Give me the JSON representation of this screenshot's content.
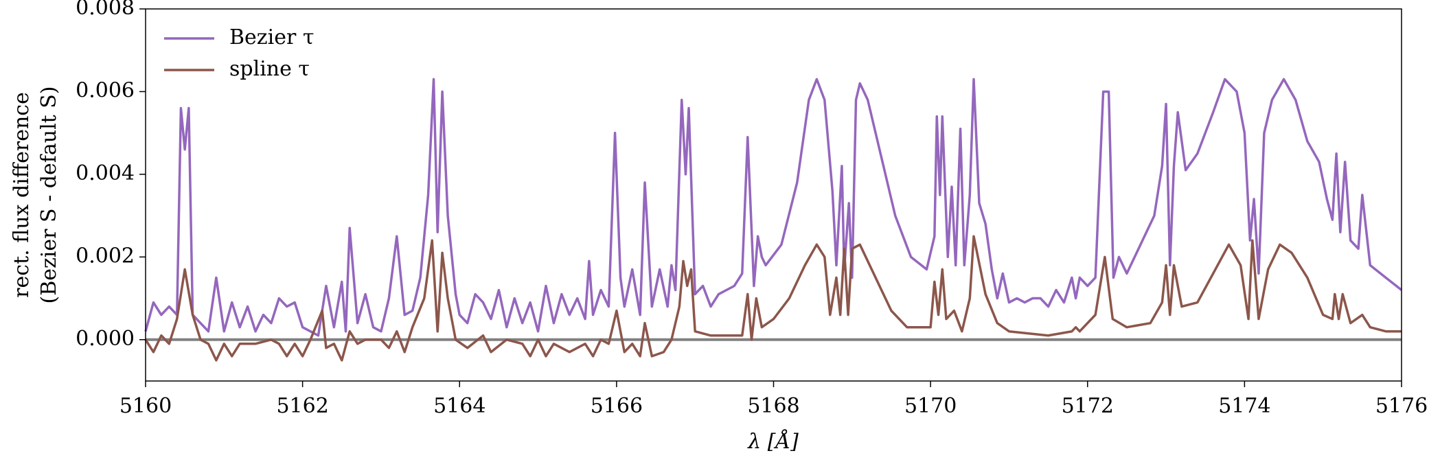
{
  "chart_data": {
    "type": "line",
    "xlabel": "λ [Å]",
    "ylabel": [
      "rect. flux difference",
      "(Bezier S - default S)"
    ],
    "xlim": [
      5160,
      5176
    ],
    "ylim": [
      -0.001,
      0.008
    ],
    "xticks": [
      5160,
      5162,
      5164,
      5166,
      5168,
      5170,
      5172,
      5174,
      5176
    ],
    "yticks": [
      {
        "value": 0,
        "label": "0.000"
      },
      {
        "value": 0.002,
        "label": "0.002"
      },
      {
        "value": 0.004,
        "label": "0.004"
      },
      {
        "value": 0.006,
        "label": "0.006"
      },
      {
        "value": 0.008,
        "label": "0.008"
      }
    ],
    "hline": {
      "value": 0,
      "color": "#808080"
    },
    "legend": "upper left",
    "series": [
      {
        "name": "Bezier τ",
        "color": "#9467bd",
        "x": [
          5160.0,
          5160.1,
          5160.2,
          5160.3,
          5160.4,
          5160.45,
          5160.5,
          5160.55,
          5160.6,
          5160.7,
          5160.8,
          5160.9,
          5161.0,
          5161.1,
          5161.2,
          5161.3,
          5161.4,
          5161.5,
          5161.6,
          5161.7,
          5161.8,
          5161.9,
          5162.0,
          5162.1,
          5162.2,
          5162.3,
          5162.4,
          5162.5,
          5162.55,
          5162.6,
          5162.7,
          5162.8,
          5162.9,
          5163.0,
          5163.1,
          5163.2,
          5163.3,
          5163.4,
          5163.5,
          5163.6,
          5163.67,
          5163.72,
          5163.78,
          5163.85,
          5163.95,
          5164.0,
          5164.1,
          5164.2,
          5164.3,
          5164.4,
          5164.5,
          5164.6,
          5164.7,
          5164.8,
          5164.9,
          5165.0,
          5165.1,
          5165.2,
          5165.3,
          5165.4,
          5165.5,
          5165.6,
          5165.65,
          5165.7,
          5165.8,
          5165.9,
          5165.98,
          5166.05,
          5166.1,
          5166.2,
          5166.3,
          5166.36,
          5166.45,
          5166.55,
          5166.65,
          5166.7,
          5166.75,
          5166.83,
          5166.88,
          5166.92,
          5167.0,
          5167.1,
          5167.2,
          5167.3,
          5167.4,
          5167.5,
          5167.6,
          5167.67,
          5167.75,
          5167.8,
          5167.85,
          5167.9,
          5168.1,
          5168.3,
          5168.45,
          5168.55,
          5168.65,
          5168.75,
          5168.8,
          5168.87,
          5168.9,
          5168.96,
          5169.0,
          5169.05,
          5169.1,
          5169.2,
          5169.4,
          5169.55,
          5169.65,
          5169.75,
          5169.95,
          5170.05,
          5170.08,
          5170.12,
          5170.15,
          5170.22,
          5170.27,
          5170.32,
          5170.38,
          5170.43,
          5170.5,
          5170.55,
          5170.62,
          5170.7,
          5170.78,
          5170.85,
          5170.92,
          5171.0,
          5171.1,
          5171.2,
          5171.3,
          5171.4,
          5171.5,
          5171.6,
          5171.7,
          5171.8,
          5171.85,
          5171.9,
          5172.0,
          5172.1,
          5172.2,
          5172.27,
          5172.33,
          5172.4,
          5172.5,
          5172.6,
          5172.7,
          5172.85,
          5172.95,
          5173.0,
          5173.05,
          5173.1,
          5173.15,
          5173.25,
          5173.4,
          5173.6,
          5173.75,
          5173.9,
          5174.0,
          5174.07,
          5174.12,
          5174.18,
          5174.25,
          5174.35,
          5174.5,
          5174.65,
          5174.8,
          5174.95,
          5175.05,
          5175.12,
          5175.17,
          5175.22,
          5175.28,
          5175.35,
          5175.45,
          5175.5,
          5175.6,
          5175.8,
          5176.0
        ],
        "values": [
          0.0002,
          0.0009,
          0.0006,
          0.0008,
          0.0006,
          0.0056,
          0.0046,
          0.0056,
          0.0006,
          0.0004,
          0.0002,
          0.0015,
          0.0002,
          0.0009,
          0.0003,
          0.0008,
          0.0002,
          0.0006,
          0.0004,
          0.001,
          0.0008,
          0.0009,
          0.0003,
          0.0002,
          0.0001,
          0.0013,
          0.0003,
          0.0014,
          0.0002,
          0.0027,
          0.0004,
          0.0011,
          0.0003,
          0.0002,
          0.001,
          0.0025,
          0.0006,
          0.0007,
          0.0015,
          0.0035,
          0.0063,
          0.0026,
          0.006,
          0.003,
          0.0011,
          0.0006,
          0.0004,
          0.0011,
          0.0009,
          0.0005,
          0.0012,
          0.0003,
          0.001,
          0.0004,
          0.0009,
          0.0002,
          0.0013,
          0.0004,
          0.0011,
          0.0006,
          0.001,
          0.0005,
          0.0019,
          0.0006,
          0.0012,
          0.0008,
          0.005,
          0.0015,
          0.0008,
          0.0017,
          0.0006,
          0.0038,
          0.0008,
          0.0017,
          0.0008,
          0.0018,
          0.0012,
          0.0058,
          0.004,
          0.0056,
          0.0011,
          0.0013,
          0.0008,
          0.0011,
          0.0012,
          0.0013,
          0.0016,
          0.0049,
          0.0013,
          0.0025,
          0.002,
          0.0018,
          0.0023,
          0.0038,
          0.0058,
          0.0063,
          0.0058,
          0.0036,
          0.0018,
          0.0042,
          0.0017,
          0.0033,
          0.0015,
          0.0058,
          0.0062,
          0.0058,
          0.0042,
          0.003,
          0.0025,
          0.002,
          0.0017,
          0.0025,
          0.0054,
          0.0035,
          0.0054,
          0.002,
          0.0037,
          0.0018,
          0.0051,
          0.0018,
          0.0035,
          0.0063,
          0.0033,
          0.0028,
          0.0017,
          0.001,
          0.0016,
          0.0009,
          0.001,
          0.0009,
          0.001,
          0.001,
          0.0008,
          0.0012,
          0.0009,
          0.0015,
          0.001,
          0.0015,
          0.0013,
          0.0015,
          0.006,
          0.006,
          0.0015,
          0.002,
          0.0016,
          0.002,
          0.0024,
          0.003,
          0.0042,
          0.0057,
          0.0018,
          0.0042,
          0.0055,
          0.0041,
          0.0045,
          0.0055,
          0.0063,
          0.006,
          0.005,
          0.0024,
          0.0034,
          0.0016,
          0.005,
          0.0058,
          0.0063,
          0.0058,
          0.0048,
          0.0043,
          0.0034,
          0.0029,
          0.0045,
          0.0026,
          0.0043,
          0.0024,
          0.0022,
          0.0035,
          0.0018,
          0.0015,
          0.0012
        ]
      },
      {
        "name": "spline τ",
        "color": "#8c564b",
        "x": [
          5160.0,
          5160.1,
          5160.2,
          5160.3,
          5160.4,
          5160.5,
          5160.6,
          5160.7,
          5160.8,
          5160.9,
          5161.0,
          5161.1,
          5161.2,
          5161.4,
          5161.6,
          5161.7,
          5161.8,
          5161.9,
          5162.0,
          5162.1,
          5162.25,
          5162.3,
          5162.4,
          5162.5,
          5162.6,
          5162.7,
          5162.8,
          5163.0,
          5163.1,
          5163.2,
          5163.3,
          5163.4,
          5163.55,
          5163.65,
          5163.72,
          5163.78,
          5163.85,
          5163.95,
          5164.1,
          5164.3,
          5164.4,
          5164.6,
          5164.8,
          5164.9,
          5165.0,
          5165.1,
          5165.2,
          5165.4,
          5165.6,
          5165.7,
          5165.8,
          5165.9,
          5166.0,
          5166.1,
          5166.2,
          5166.3,
          5166.36,
          5166.45,
          5166.6,
          5166.7,
          5166.8,
          5166.85,
          5166.9,
          5166.95,
          5167.0,
          5167.2,
          5167.5,
          5167.6,
          5167.67,
          5167.72,
          5167.78,
          5167.85,
          5168.0,
          5168.2,
          5168.4,
          5168.55,
          5168.65,
          5168.72,
          5168.8,
          5168.85,
          5168.9,
          5168.95,
          5169.0,
          5169.1,
          5169.3,
          5169.5,
          5169.7,
          5170.0,
          5170.05,
          5170.1,
          5170.15,
          5170.2,
          5170.3,
          5170.4,
          5170.5,
          5170.55,
          5170.7,
          5170.85,
          5171.0,
          5171.5,
          5171.8,
          5171.85,
          5171.9,
          5172.1,
          5172.22,
          5172.32,
          5172.5,
          5172.8,
          5172.95,
          5173.0,
          5173.05,
          5173.1,
          5173.2,
          5173.4,
          5173.6,
          5173.8,
          5173.95,
          5174.05,
          5174.1,
          5174.18,
          5174.3,
          5174.45,
          5174.6,
          5174.8,
          5175.0,
          5175.12,
          5175.15,
          5175.2,
          5175.25,
          5175.35,
          5175.5,
          5175.6,
          5175.8,
          5176.0
        ],
        "values": [
          0.0,
          -0.0003,
          0.0001,
          -0.0001,
          0.0005,
          0.0017,
          0.0006,
          0.0,
          -0.0001,
          -0.0005,
          -0.0001,
          -0.0004,
          -0.0001,
          -0.0001,
          0.0,
          -0.0001,
          -0.0004,
          -0.0001,
          -0.0004,
          0.0,
          0.0007,
          -0.0002,
          -0.0001,
          -0.0005,
          0.0002,
          -0.0001,
          0.0,
          0.0,
          -0.0002,
          0.0002,
          -0.0003,
          0.0003,
          0.001,
          0.0024,
          0.0002,
          0.0021,
          0.001,
          0.0,
          -0.0002,
          0.0001,
          -0.0003,
          0.0,
          -0.0001,
          -0.0004,
          0.0,
          -0.0004,
          -0.0001,
          -0.0003,
          -0.0001,
          -0.0004,
          0.0,
          -0.0001,
          0.0007,
          -0.0003,
          -0.0001,
          -0.0004,
          0.0004,
          -0.0004,
          -0.0003,
          0.0,
          0.0008,
          0.0019,
          0.0013,
          0.0017,
          0.0002,
          0.0001,
          0.0001,
          0.0001,
          0.0011,
          0.0,
          0.001,
          0.0003,
          0.0005,
          0.001,
          0.0018,
          0.0023,
          0.002,
          0.0006,
          0.0015,
          0.0006,
          0.0022,
          0.0006,
          0.0022,
          0.0023,
          0.0015,
          0.0007,
          0.0003,
          0.0003,
          0.0014,
          0.0006,
          0.0017,
          0.0005,
          0.0007,
          0.0002,
          0.001,
          0.0025,
          0.0011,
          0.0004,
          0.0002,
          0.0001,
          0.0002,
          0.0003,
          0.0002,
          0.0006,
          0.002,
          0.0005,
          0.0003,
          0.0004,
          0.0009,
          0.0018,
          0.0006,
          0.0018,
          0.0008,
          0.0009,
          0.0016,
          0.0023,
          0.0018,
          0.0005,
          0.0024,
          0.0005,
          0.0017,
          0.0023,
          0.0021,
          0.0015,
          0.0006,
          0.0005,
          0.0011,
          0.0005,
          0.0011,
          0.0004,
          0.0006,
          0.0003,
          0.0002,
          0.0002
        ]
      }
    ]
  }
}
